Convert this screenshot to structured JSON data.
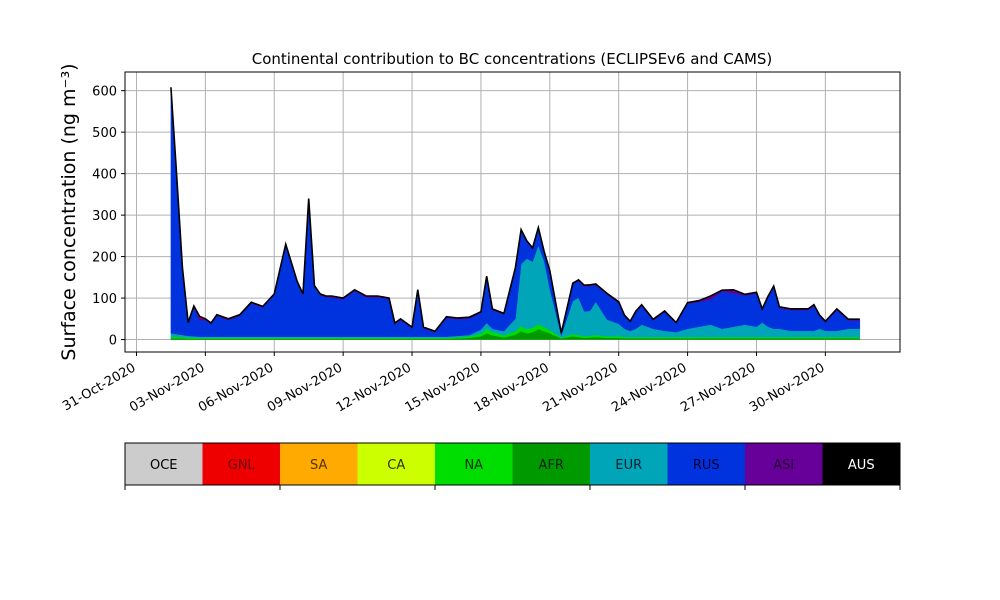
{
  "chart_data": {
    "type": "area",
    "title": "Continental contribution to BC concentrations (ECLIPSEv6 and CAMS)",
    "ylabel": "Surface concentration (ng m⁻³)",
    "xlabel": "",
    "xlim": [
      "2020-10-30T12:00",
      "2020-12-03T06:00"
    ],
    "ylim": [
      -30,
      645
    ],
    "grid": true,
    "y_ticks": [
      0,
      100,
      200,
      300,
      400,
      500,
      600
    ],
    "x_ticks": [
      "2020-10-31",
      "2020-11-03",
      "2020-11-06",
      "2020-11-09",
      "2020-11-12",
      "2020-11-15",
      "2020-11-18",
      "2020-11-21",
      "2020-11-24",
      "2020-11-27",
      "2020-11-30"
    ],
    "x_tick_labels": [
      "31-Oct-2020",
      "03-Nov-2020",
      "06-Nov-2020",
      "09-Nov-2020",
      "12-Nov-2020",
      "15-Nov-2020",
      "18-Nov-2020",
      "21-Nov-2020",
      "24-Nov-2020",
      "27-Nov-2020",
      "30-Nov-2020"
    ],
    "x": [
      "2020-11-01T12:00",
      "2020-11-01T18:00",
      "2020-11-02T00:00",
      "2020-11-02T06:00",
      "2020-11-02T12:00",
      "2020-11-02T18:00",
      "2020-11-03T00:00",
      "2020-11-03T06:00",
      "2020-11-03T12:00",
      "2020-11-04T00:00",
      "2020-11-04T12:00",
      "2020-11-05T00:00",
      "2020-11-05T12:00",
      "2020-11-06T00:00",
      "2020-11-06T12:00",
      "2020-11-07T00:00",
      "2020-11-07T06:00",
      "2020-11-07T12:00",
      "2020-11-07T18:00",
      "2020-11-08T00:00",
      "2020-11-08T06:00",
      "2020-11-08T12:00",
      "2020-11-09T00:00",
      "2020-11-09T12:00",
      "2020-11-10T00:00",
      "2020-11-10T12:00",
      "2020-11-11T00:00",
      "2020-11-11T06:00",
      "2020-11-11T12:00",
      "2020-11-12T00:00",
      "2020-11-12T06:00",
      "2020-11-12T12:00",
      "2020-11-13T00:00",
      "2020-11-13T12:00",
      "2020-11-14T00:00",
      "2020-11-14T12:00",
      "2020-11-15T00:00",
      "2020-11-15T06:00",
      "2020-11-15T12:00",
      "2020-11-16T00:00",
      "2020-11-16T12:00",
      "2020-11-16T18:00",
      "2020-11-17T00:00",
      "2020-11-17T06:00",
      "2020-11-17T12:00",
      "2020-11-17T18:00",
      "2020-11-18T00:00",
      "2020-11-18T12:00",
      "2020-11-19T00:00",
      "2020-11-19T06:00",
      "2020-11-19T12:00",
      "2020-11-19T18:00",
      "2020-11-20T00:00",
      "2020-11-20T12:00",
      "2020-11-21T00:00",
      "2020-11-21T06:00",
      "2020-11-21T12:00",
      "2020-11-21T18:00",
      "2020-11-22T00:00",
      "2020-11-22T12:00",
      "2020-11-23T00:00",
      "2020-11-23T12:00",
      "2020-11-24T00:00",
      "2020-11-24T12:00",
      "2020-11-25T00:00",
      "2020-11-25T12:00",
      "2020-11-26T00:00",
      "2020-11-26T12:00",
      "2020-11-27T00:00",
      "2020-11-27T06:00",
      "2020-11-27T12:00",
      "2020-11-27T18:00",
      "2020-11-28T00:00",
      "2020-11-28T12:00",
      "2020-11-29T00:00",
      "2020-11-29T06:00",
      "2020-11-29T12:00",
      "2020-11-29T18:00",
      "2020-11-30T00:00",
      "2020-11-30T12:00",
      "2020-12-01T00:00",
      "2020-12-01T12:00"
    ],
    "series": [
      {
        "name": "AFR",
        "color": "#009900",
        "values": [
          3,
          3,
          3,
          2,
          2,
          2,
          2,
          2,
          2,
          2,
          2,
          2,
          2,
          2,
          2,
          2,
          2,
          2,
          2,
          2,
          2,
          2,
          2,
          2,
          2,
          2,
          2,
          2,
          2,
          2,
          2,
          2,
          2,
          2,
          3,
          4,
          8,
          15,
          10,
          5,
          12,
          20,
          15,
          18,
          25,
          20,
          15,
          3,
          8,
          6,
          4,
          5,
          6,
          4,
          4,
          3,
          3,
          3,
          3,
          3,
          3,
          3,
          3,
          3,
          3,
          3,
          3,
          3,
          3,
          3,
          3,
          3,
          3,
          3,
          3,
          3,
          3,
          3,
          3,
          3,
          3,
          3
        ]
      },
      {
        "name": "NA",
        "color": "#00dd00",
        "values": [
          4,
          4,
          3,
          3,
          3,
          2,
          2,
          2,
          2,
          2,
          2,
          2,
          2,
          2,
          2,
          2,
          2,
          2,
          2,
          2,
          2,
          2,
          2,
          2,
          2,
          2,
          2,
          2,
          2,
          2,
          2,
          2,
          2,
          2,
          3,
          4,
          6,
          10,
          8,
          5,
          8,
          12,
          10,
          10,
          12,
          10,
          8,
          2,
          5,
          5,
          4,
          4,
          5,
          4,
          4,
          3,
          3,
          3,
          3,
          3,
          3,
          3,
          3,
          3,
          3,
          3,
          3,
          3,
          3,
          3,
          3,
          3,
          3,
          3,
          3,
          3,
          3,
          3,
          3,
          3,
          3,
          3
        ]
      },
      {
        "name": "EUR",
        "color": "#00a6b8",
        "values": [
          8,
          6,
          5,
          4,
          3,
          3,
          3,
          3,
          3,
          3,
          3,
          3,
          3,
          3,
          3,
          3,
          3,
          3,
          3,
          3,
          3,
          3,
          3,
          3,
          3,
          3,
          3,
          3,
          3,
          3,
          3,
          3,
          3,
          3,
          3,
          3,
          10,
          15,
          8,
          10,
          30,
          150,
          170,
          160,
          190,
          160,
          100,
          5,
          80,
          90,
          60,
          60,
          80,
          40,
          30,
          20,
          15,
          20,
          30,
          20,
          15,
          12,
          20,
          25,
          30,
          20,
          25,
          30,
          25,
          35,
          25,
          20,
          20,
          15,
          15,
          15,
          15,
          20,
          15,
          15,
          20,
          20
        ]
      },
      {
        "name": "RUS",
        "color": "#0033dd",
        "values": [
          590,
          380,
          160,
          30,
          70,
          40,
          40,
          30,
          50,
          40,
          50,
          80,
          70,
          100,
          220,
          130,
          100,
          330,
          120,
          100,
          95,
          95,
          90,
          110,
          95,
          95,
          90,
          30,
          40,
          20,
          110,
          20,
          10,
          45,
          40,
          40,
          40,
          110,
          45,
          40,
          120,
          80,
          40,
          30,
          40,
          20,
          40,
          3,
          40,
          40,
          60,
          60,
          40,
          60,
          50,
          30,
          20,
          40,
          45,
          20,
          45,
          20,
          60,
          60,
          60,
          90,
          80,
          70,
          80,
          30,
          70,
          100,
          50,
          50,
          50,
          50,
          60,
          30,
          20,
          50,
          20,
          20
        ]
      },
      {
        "name": "ASI",
        "color": "#660099",
        "values": [
          2,
          2,
          2,
          1,
          2,
          6,
          2,
          2,
          2,
          2,
          2,
          2,
          2,
          2,
          2,
          2,
          2,
          2,
          2,
          2,
          2,
          2,
          2,
          2,
          2,
          2,
          2,
          2,
          2,
          2,
          2,
          2,
          2,
          2,
          2,
          2,
          2,
          2,
          2,
          2,
          2,
          2,
          2,
          2,
          2,
          2,
          2,
          2,
          2,
          2,
          2,
          2,
          2,
          2,
          2,
          2,
          2,
          2,
          2,
          2,
          2,
          2,
          2,
          2,
          8,
          2,
          8,
          2,
          2,
          2,
          2,
          2,
          2,
          2,
          2,
          2,
          2,
          2,
          2,
          2,
          2,
          2
        ]
      },
      {
        "name": "GNL",
        "color": "#ee0000",
        "values": [
          1,
          1,
          1,
          1,
          1,
          3,
          1,
          1,
          1,
          1,
          1,
          1,
          1,
          1,
          1,
          1,
          1,
          1,
          1,
          1,
          1,
          1,
          1,
          1,
          1,
          1,
          1,
          1,
          1,
          1,
          1,
          1,
          1,
          1,
          1,
          1,
          1,
          1,
          1,
          1,
          1,
          1,
          1,
          1,
          1,
          1,
          1,
          1,
          1,
          1,
          1,
          1,
          1,
          1,
          1,
          1,
          1,
          1,
          1,
          1,
          1,
          1,
          1,
          1,
          1,
          1,
          1,
          1,
          1,
          1,
          1,
          1,
          1,
          1,
          1,
          1,
          1,
          1,
          1,
          1,
          1,
          1
        ]
      }
    ],
    "legend": {
      "placement": "bottom",
      "entries": [
        {
          "label": "OCE",
          "color": "#cccccc",
          "text_color": "#000000"
        },
        {
          "label": "GNL",
          "color": "#ee0000",
          "text_color": "#660000"
        },
        {
          "label": "SA",
          "color": "#ffaa00",
          "text_color": "#553300"
        },
        {
          "label": "CA",
          "color": "#ccff00",
          "text_color": "#333300"
        },
        {
          "label": "NA",
          "color": "#00dd00",
          "text_color": "#003300"
        },
        {
          "label": "AFR",
          "color": "#009900",
          "text_color": "#002200"
        },
        {
          "label": "EUR",
          "color": "#00a6b8",
          "text_color": "#002233"
        },
        {
          "label": "RUS",
          "color": "#0033dd",
          "text_color": "#000033"
        },
        {
          "label": "ASI",
          "color": "#660099",
          "text_color": "#220033"
        },
        {
          "label": "AUS",
          "color": "#000000",
          "text_color": "#ffffff"
        }
      ]
    }
  }
}
